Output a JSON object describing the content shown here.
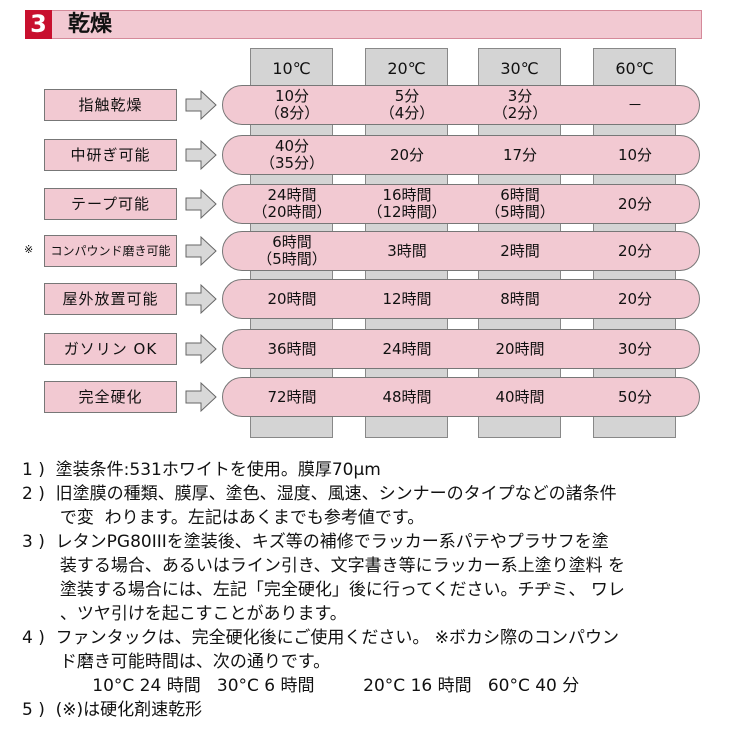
{
  "section": {
    "number": "3",
    "title": "乾燥"
  },
  "columns": [
    "10℃",
    "20℃",
    "30℃",
    "60℃"
  ],
  "rows": [
    {
      "label": "指触乾燥",
      "mark": "",
      "values": [
        [
          "10分",
          "（8分）"
        ],
        [
          "5分",
          "（4分）"
        ],
        [
          "3分",
          "（2分）"
        ],
        [
          "－"
        ]
      ]
    },
    {
      "label": "中研ぎ可能",
      "mark": "",
      "values": [
        [
          "40分",
          "（35分）"
        ],
        [
          "20分"
        ],
        [
          "17分"
        ],
        [
          "10分"
        ]
      ]
    },
    {
      "label": "テープ可能",
      "mark": "",
      "values": [
        [
          "24時間",
          "（20時間）"
        ],
        [
          "16時間",
          "（12時間）"
        ],
        [
          "6時間",
          "（5時間）"
        ],
        [
          "20分"
        ]
      ]
    },
    {
      "label": "コンパウンド磨き可能",
      "mark": "※",
      "values": [
        [
          "6時間",
          "（5時間）"
        ],
        [
          "3時間"
        ],
        [
          "2時間"
        ],
        [
          "20分"
        ]
      ]
    },
    {
      "label": "屋外放置可能",
      "mark": "",
      "values": [
        [
          "20時間"
        ],
        [
          "12時間"
        ],
        [
          "8時間"
        ],
        [
          "20分"
        ]
      ]
    },
    {
      "label": "ガソリン OK",
      "mark": "",
      "values": [
        [
          "36時間"
        ],
        [
          "24時間"
        ],
        [
          "20時間"
        ],
        [
          "30分"
        ]
      ]
    },
    {
      "label": "完全硬化",
      "mark": "",
      "values": [
        [
          "72時間"
        ],
        [
          "48時間"
        ],
        [
          "40時間"
        ],
        [
          "50分"
        ]
      ]
    }
  ],
  "notes": [
    "1 )  塗装条件:531ホワイトを使用。膜厚70μm",
    "2 )  旧塗膜の種類、膜厚、塗色、湿度、風速、シンナーのタイプなどの諸条件",
    "       で変  わります。左記はあくまでも参考値です。",
    "3 )  レタンPG80IIIを塗装後、キズ等の補修でラッカー系パテやプラサフを塗",
    "       装する場合、あるいはライン引き、文字書き等にラッカー系上塗り塗料 を",
    "       塗装する場合には、左記「完全硬化」後に行ってください。チヂミ、 ワレ",
    "       、ツヤ引けを起こすことがあります。",
    "4 )  ファンタックは、完全硬化後にご使用ください。 ※ボカシ際のコンパウン",
    "       ド磨き可能時間は、次の通りです。",
    "             10°C 24 時間   30°C 6 時間         20°C 16 時間   60°C 40 分",
    "5 )  (※)は硬化剤速乾形"
  ],
  "colors": {
    "accent": "#c8102e",
    "pink": "#f2c9d2",
    "gray": "#d4d4d4"
  }
}
